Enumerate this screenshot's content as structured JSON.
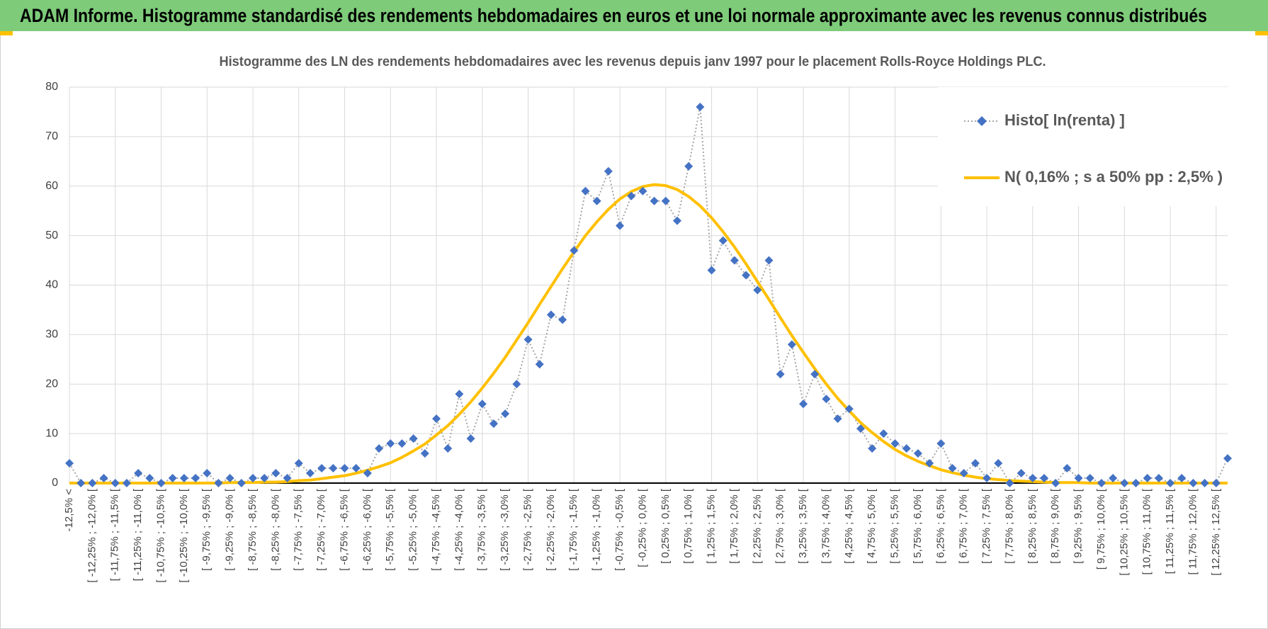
{
  "header": {
    "title": "ADAM Informe. Histogramme standardisé des rendements hebdomadaires en euros et une loi normale approximante avec les revenus connus distribués"
  },
  "chart_data": {
    "type": "line",
    "title": "Histogramme  des LN des rendements hebdomadaires avec les revenus depuis janv 1997 pour le placement Rolls-Royce Holdings PLC.",
    "categories": [
      "-12,5% <",
      null,
      "[ -12,25% ; -12,0% [",
      null,
      "[ -11,75% ; -11,5% [",
      null,
      "[ -11,25% ; -11,0% [",
      null,
      "[ -10,75% ; -10,5% [",
      null,
      "[ -10,25% ; -10,0% [",
      null,
      "[ -9,75% ; -9,5% [",
      null,
      "[ -9,25% ; -9,0% [",
      null,
      "[ -8,75% ; -8,5% [",
      null,
      "[ -8,25% ; -8,0% [",
      null,
      "[ -7,75% ; -7,5% [",
      null,
      "[ -7,25% ; -7,0% [",
      null,
      "[ -6,75% ; -6,5% [",
      null,
      "[ -6,25% ; -6,0% [",
      null,
      "[ -5,75% ; -5,5% [",
      null,
      "[ -5,25% ; -5,0% [",
      null,
      "[ -4,75% ; -4,5% [",
      null,
      "[ -4,25% ; -4,0% [",
      null,
      "[ -3,75% ; -3,5% [",
      null,
      "[ -3,25% ; -3,0% [",
      null,
      "[ -2,75% ; -2,5% [",
      null,
      "[ -2,25% ; -2,0% [",
      null,
      "[ -1,75% ; -1,5% [",
      null,
      "[ -1,25% ; -1,0% [",
      null,
      "[ -0,75% ; -0,5% [",
      null,
      "[ -0,25% ; 0,0% [",
      null,
      "[ 0,25% ; 0,5% [",
      null,
      "[ 0,75% ; 1,0% [",
      null,
      "[ 1,25% ; 1,5% [",
      null,
      "[ 1,75% ; 2,0% [",
      null,
      "[ 2,25% ; 2,5% [",
      null,
      "[ 2,75% ; 3,0% [",
      null,
      "[ 3,25% ; 3,5% [",
      null,
      "[ 3,75% ; 4,0% [",
      null,
      "[ 4,25% ; 4,5% [",
      null,
      "[ 4,75% ; 5,0% [",
      null,
      "[ 5,25% ; 5,5% [",
      null,
      "[ 5,75% ; 6,0% [",
      null,
      "[ 6,25% ; 6,5% [",
      null,
      "[ 6,75% ; 7,0% [",
      null,
      "[ 7,25% ; 7,5% [",
      null,
      "[ 7,75% ; 8,0% [",
      null,
      "[ 8,25% ; 8,5% [",
      null,
      "[ 8,75% ; 9,0% [",
      null,
      "[ 9,25% ; 9,5% [",
      null,
      "[ 9,75% ; 10,0% [",
      null,
      "[ 10,25% ; 10,5% [",
      null,
      "[ 10,75% ; 11,0% [",
      null,
      "[ 11,25% ; 11,5% [",
      null,
      "[ 11,75% ; 12,0% [",
      null,
      "[ 12,25% ; 12,5% [",
      null
    ],
    "series": [
      {
        "name": "Histo[ ln(renta) ]",
        "color": "#4472c4",
        "line_color": "#a6a6a6",
        "marker": "diamond",
        "values": [
          4,
          0,
          0,
          1,
          0,
          0,
          2,
          1,
          0,
          1,
          1,
          1,
          2,
          0,
          1,
          0,
          1,
          1,
          2,
          1,
          4,
          2,
          3,
          3,
          3,
          3,
          2,
          7,
          8,
          8,
          9,
          6,
          13,
          7,
          18,
          9,
          16,
          12,
          14,
          20,
          29,
          24,
          34,
          33,
          47,
          59,
          57,
          63,
          52,
          58,
          59,
          57,
          57,
          53,
          64,
          76,
          43,
          49,
          45,
          42,
          39,
          45,
          22,
          28,
          16,
          22,
          17,
          13,
          15,
          11,
          7,
          10,
          8,
          7,
          6,
          4,
          8,
          3,
          2,
          4,
          1,
          4,
          0,
          2,
          1,
          1,
          0,
          3,
          1,
          1,
          0,
          1,
          0,
          0,
          1,
          1,
          0,
          1,
          0,
          0,
          0,
          5
        ]
      },
      {
        "name": "N( 0,16% ; s a 50% pp : 2,5% )",
        "color": "#ffc000",
        "values": [
          0,
          0,
          0,
          0,
          0,
          0,
          0,
          0,
          0,
          0,
          0,
          0,
          0,
          0,
          0.1,
          0.1,
          0.1,
          0.2,
          0.2,
          0.3,
          0.5,
          0.6,
          0.9,
          1.2,
          1.5,
          2.0,
          2.6,
          3.3,
          4.1,
          5.2,
          6.5,
          7.9,
          9.7,
          11.6,
          13.9,
          16.4,
          19.2,
          22.2,
          25.4,
          28.9,
          32.4,
          36.1,
          39.7,
          43.3,
          46.7,
          50.0,
          52.8,
          55.3,
          57.4,
          58.9,
          59.9,
          60.3,
          60.1,
          59.3,
          57.9,
          56.0,
          53.6,
          50.8,
          47.7,
          44.3,
          40.7,
          37.1,
          33.4,
          29.8,
          26.4,
          23.1,
          20.0,
          17.1,
          14.6,
          12.2,
          10.2,
          8.4,
          6.8,
          5.5,
          4.4,
          3.5,
          2.7,
          2.1,
          1.6,
          1.2,
          0.9,
          0.7,
          0.5,
          0.4,
          0.3,
          0.2,
          0.1,
          0.1,
          0.1,
          0,
          0,
          0,
          0,
          0,
          0,
          0,
          0,
          0,
          0,
          0,
          0,
          0
        ]
      }
    ],
    "ylim": [
      0,
      80
    ],
    "yticks": [
      0,
      10,
      20,
      30,
      40,
      50,
      60,
      70,
      80
    ],
    "grid": true,
    "legend": "top-right"
  }
}
